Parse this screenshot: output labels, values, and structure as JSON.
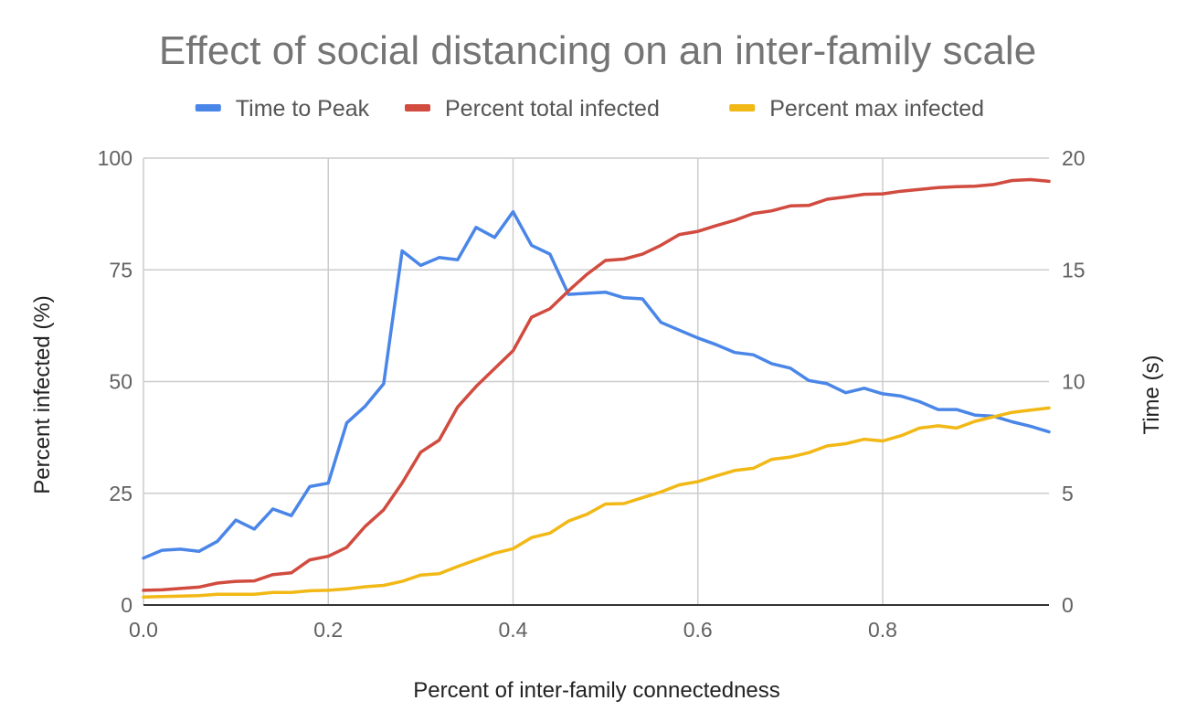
{
  "chart_data": {
    "type": "line",
    "title": "Effect of social distancing on an inter-family scale",
    "xlabel": "Percent of inter-family connectedness",
    "ylabel_left": "Percent infected (%)",
    "ylabel_right": "Time (s)",
    "xlim": [
      0,
      0.98
    ],
    "ylim_left": [
      0,
      100
    ],
    "ylim_right": [
      0,
      20
    ],
    "x_ticks": [
      0.0,
      0.2,
      0.4,
      0.6,
      0.8
    ],
    "x_tick_labels": [
      "0.0",
      "0.2",
      "0.4",
      "0.6",
      "0.8"
    ],
    "y_left_ticks": [
      0,
      25,
      50,
      75,
      100
    ],
    "y_left_tick_labels": [
      "0",
      "25",
      "50",
      "75",
      "100"
    ],
    "y_right_ticks": [
      0,
      5,
      10,
      15,
      20
    ],
    "y_right_tick_labels": [
      "0",
      "5",
      "10",
      "15",
      "20"
    ],
    "grid": true,
    "legend_position": "top",
    "x": [
      0,
      0.02,
      0.04,
      0.06,
      0.08,
      0.1,
      0.12,
      0.14,
      0.16,
      0.18,
      0.2,
      0.22,
      0.24,
      0.26,
      0.28,
      0.3,
      0.32,
      0.34,
      0.36,
      0.38,
      0.4,
      0.42,
      0.44,
      0.46,
      0.48,
      0.5,
      0.52,
      0.54,
      0.56,
      0.58,
      0.6,
      0.62,
      0.64,
      0.66,
      0.68,
      0.7,
      0.72,
      0.74,
      0.76,
      0.78,
      0.8,
      0.82,
      0.84,
      0.86,
      0.88,
      0.9,
      0.92,
      0.94,
      0.96,
      0.98
    ],
    "series": [
      {
        "name": "Time to Peak",
        "axis": "right",
        "color": "#4a86e8",
        "values": [
          2.1,
          2.45,
          2.5,
          2.4,
          2.85,
          3.8,
          3.4,
          4.3,
          4.0,
          5.3,
          5.45,
          8.15,
          8.9,
          9.9,
          15.85,
          15.2,
          15.55,
          15.45,
          16.9,
          16.45,
          17.6,
          16.1,
          15.7,
          13.9,
          13.95,
          14.0,
          13.75,
          13.7,
          12.65,
          12.3,
          11.95,
          11.65,
          11.3,
          11.2,
          10.8,
          10.6,
          10.05,
          9.9,
          9.5,
          9.7,
          9.45,
          9.35,
          9.1,
          8.75,
          8.75,
          8.5,
          8.45,
          8.2,
          8.0,
          7.75
        ]
      },
      {
        "name": "Percent total infected",
        "axis": "left",
        "color": "#d14b3f",
        "values": [
          3.3,
          3.4,
          3.7,
          4.0,
          4.9,
          5.3,
          5.4,
          6.8,
          7.2,
          10.1,
          10.9,
          12.9,
          17.6,
          21.3,
          27.3,
          34.2,
          36.9,
          44.3,
          48.9,
          52.9,
          56.9,
          64.4,
          66.3,
          70.3,
          74.0,
          77.1,
          77.4,
          78.5,
          80.5,
          82.9,
          83.6,
          84.9,
          86.1,
          87.6,
          88.2,
          89.3,
          89.4,
          90.8,
          91.3,
          91.9,
          92.0,
          92.6,
          93.0,
          93.4,
          93.6,
          93.7,
          94.1,
          95.0,
          95.2,
          94.8
        ]
      },
      {
        "name": "Percent max infected",
        "axis": "left",
        "color": "#f1b816",
        "values": [
          1.8,
          1.9,
          2.0,
          2.1,
          2.4,
          2.4,
          2.4,
          2.8,
          2.8,
          3.2,
          3.3,
          3.6,
          4.1,
          4.4,
          5.3,
          6.7,
          7.0,
          8.6,
          10.1,
          11.6,
          12.6,
          15.1,
          16.1,
          18.8,
          20.3,
          22.6,
          22.7,
          24.0,
          25.3,
          26.9,
          27.6,
          28.9,
          30.1,
          30.6,
          32.6,
          33.1,
          34.1,
          35.6,
          36.1,
          37.1,
          36.7,
          37.9,
          39.6,
          40.1,
          39.6,
          41.1,
          42.1,
          43.1,
          43.6,
          44.1
        ]
      }
    ]
  }
}
